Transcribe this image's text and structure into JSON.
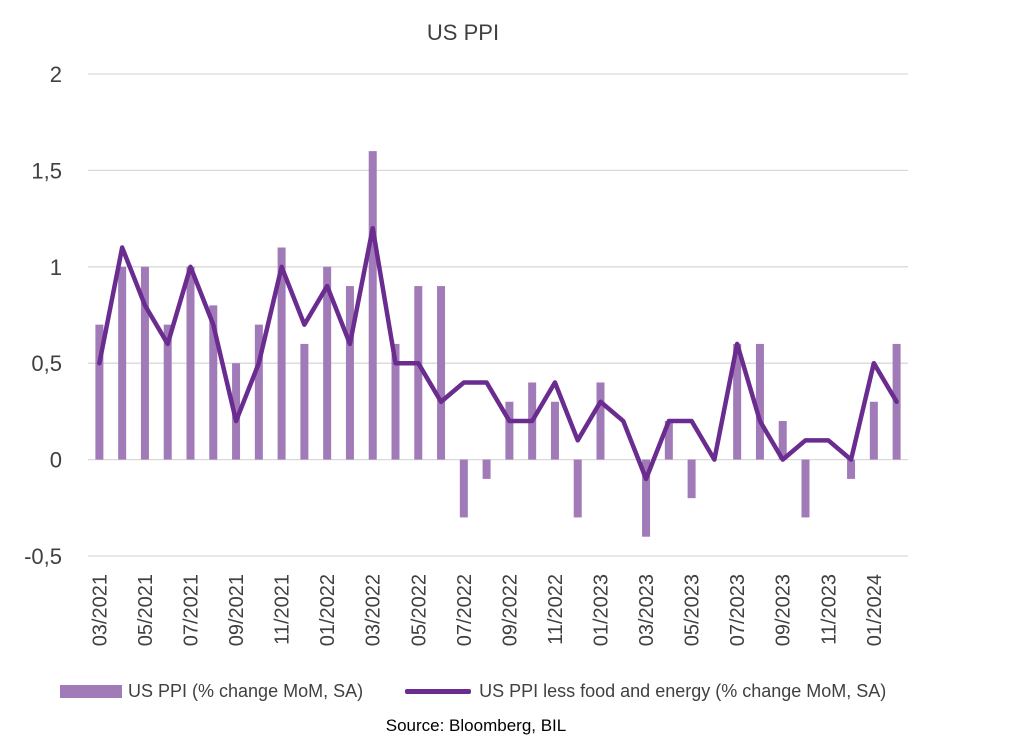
{
  "colors": {
    "bar": "#a17ab8",
    "line": "#6a2c8e",
    "grid": "#d9d9d9",
    "text": "#404040"
  },
  "legend": {
    "bar_label": "US PPI (% change MoM, SA)",
    "line_label": "US PPI less food and energy (% change MoM, SA)"
  },
  "source": "Source: Bloomberg, BIL",
  "chart_data": {
    "type": "bar+line",
    "title": "US PPI",
    "xlabel": "",
    "ylabel": "",
    "ylim": [
      -0.5,
      2
    ],
    "yticks": [
      "-0,5",
      "0",
      "0,5",
      "1",
      "1,5",
      "2"
    ],
    "ytick_values": [
      -0.5,
      0,
      0.5,
      1,
      1.5,
      2
    ],
    "grid": true,
    "legend_position": "bottom",
    "categories": [
      "03/2021",
      "04/2021",
      "05/2021",
      "06/2021",
      "07/2021",
      "08/2021",
      "09/2021",
      "10/2021",
      "11/2021",
      "12/2021",
      "01/2022",
      "02/2022",
      "03/2022",
      "04/2022",
      "05/2022",
      "06/2022",
      "07/2022",
      "08/2022",
      "09/2022",
      "10/2022",
      "11/2022",
      "12/2022",
      "01/2023",
      "02/2023",
      "03/2023",
      "04/2023",
      "05/2023",
      "06/2023",
      "07/2023",
      "08/2023",
      "09/2023",
      "10/2023",
      "11/2023",
      "12/2023",
      "01/2024",
      "02/2024"
    ],
    "xtick_labels": [
      "03/2021",
      "05/2021",
      "07/2021",
      "09/2021",
      "11/2021",
      "01/2022",
      "03/2022",
      "05/2022",
      "07/2022",
      "09/2022",
      "11/2022",
      "01/2023",
      "03/2023",
      "05/2023",
      "07/2023",
      "09/2023",
      "11/2023",
      "01/2024"
    ],
    "series": [
      {
        "name": "US PPI (% change MoM, SA)",
        "type": "bar",
        "values": [
          0.7,
          1.0,
          1.0,
          0.7,
          1.0,
          0.8,
          0.5,
          0.7,
          1.1,
          0.6,
          1.0,
          0.9,
          1.6,
          0.6,
          0.9,
          0.9,
          -0.3,
          -0.1,
          0.3,
          0.4,
          0.3,
          -0.3,
          0.4,
          0.0,
          -0.4,
          0.2,
          -0.2,
          0.0,
          0.6,
          0.6,
          0.2,
          -0.3,
          0.0,
          -0.1,
          0.3,
          0.6
        ]
      },
      {
        "name": "US PPI less food and energy (% change MoM, SA)",
        "type": "line",
        "values": [
          0.5,
          1.1,
          0.8,
          0.6,
          1.0,
          0.7,
          0.2,
          0.5,
          1.0,
          0.7,
          0.9,
          0.6,
          1.2,
          0.5,
          0.5,
          0.3,
          0.4,
          0.4,
          0.2,
          0.2,
          0.4,
          0.1,
          0.3,
          0.2,
          -0.1,
          0.2,
          0.2,
          0.0,
          0.6,
          0.2,
          0.0,
          0.1,
          0.1,
          0.0,
          0.5,
          0.3
        ]
      }
    ]
  }
}
